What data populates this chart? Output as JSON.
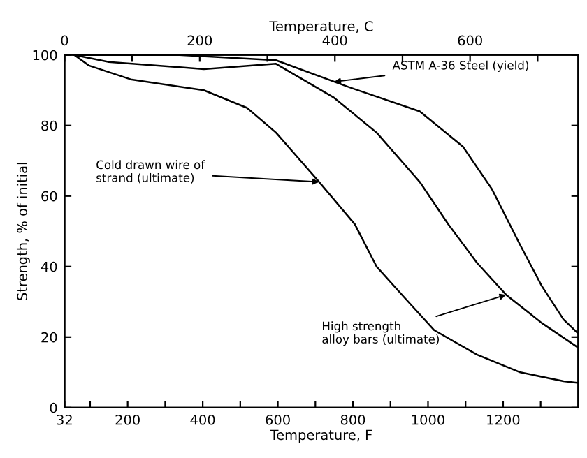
{
  "chart_data": {
    "type": "line",
    "xlabel": "Temperature, F",
    "ylabel": "Strength, % of initial",
    "x2label": "Temperature, C",
    "xlim": [
      32,
      1400
    ],
    "ylim": [
      0,
      100
    ],
    "x2lim": [
      0,
      760
    ],
    "xticks": [
      32,
      {
        "value": 100,
        "label": null
      },
      200,
      {
        "value": 300,
        "label": null
      },
      400,
      {
        "value": 500,
        "label": null
      },
      600,
      {
        "value": 700,
        "label": null
      },
      800,
      {
        "value": 900,
        "label": null
      },
      1000,
      {
        "value": 1100,
        "label": null
      },
      1200,
      {
        "value": 1300,
        "label": null
      }
    ],
    "x2ticks": [
      0,
      {
        "value": 100,
        "label": null
      },
      200,
      {
        "value": 300,
        "label": null
      },
      400,
      {
        "value": 500,
        "label": null
      },
      600,
      {
        "value": 700,
        "label": null
      }
    ],
    "yticks": [
      0,
      20,
      40,
      60,
      80,
      100
    ],
    "grid": false,
    "legend": false,
    "marker": "none",
    "line_style": "solid",
    "series": [
      {
        "color": "#000000",
        "x": [
          58,
          97,
          211,
          403,
          518,
          595,
          710,
          805,
          863,
          939,
          1016,
          1131,
          1246,
          1361,
          1400
        ],
        "values": [
          100,
          97,
          93,
          90,
          85,
          78,
          64,
          52,
          40,
          31,
          22,
          15,
          10,
          7.5,
          7
        ]
      },
      {
        "color": "#000000",
        "x": [
          58,
          150,
          403,
          595,
          748,
          863,
          978,
          1054,
          1131,
          1208,
          1303,
          1400
        ],
        "values": [
          100,
          98,
          96,
          97.5,
          88,
          78,
          64,
          52,
          41,
          32,
          24,
          17
        ]
      },
      {
        "color": "#000000",
        "x": [
          58,
          338,
          595,
          786,
          978,
          1093,
          1170,
          1246,
          1303,
          1361,
          1400
        ],
        "values": [
          100,
          100,
          98.5,
          91,
          84,
          74,
          62,
          46,
          34.5,
          25,
          21
        ]
      }
    ],
    "annotations": [
      {
        "text": "Cold drawn wire of\nstrand (ultimate)",
        "x": 710,
        "y": 64
      },
      {
        "text": "ASTM A-36 Steel (yield)",
        "x": 750,
        "y": 92.4
      },
      {
        "text": "High strength\nalloy bars (ultimate)",
        "x": 1208,
        "y": 32
      }
    ]
  }
}
